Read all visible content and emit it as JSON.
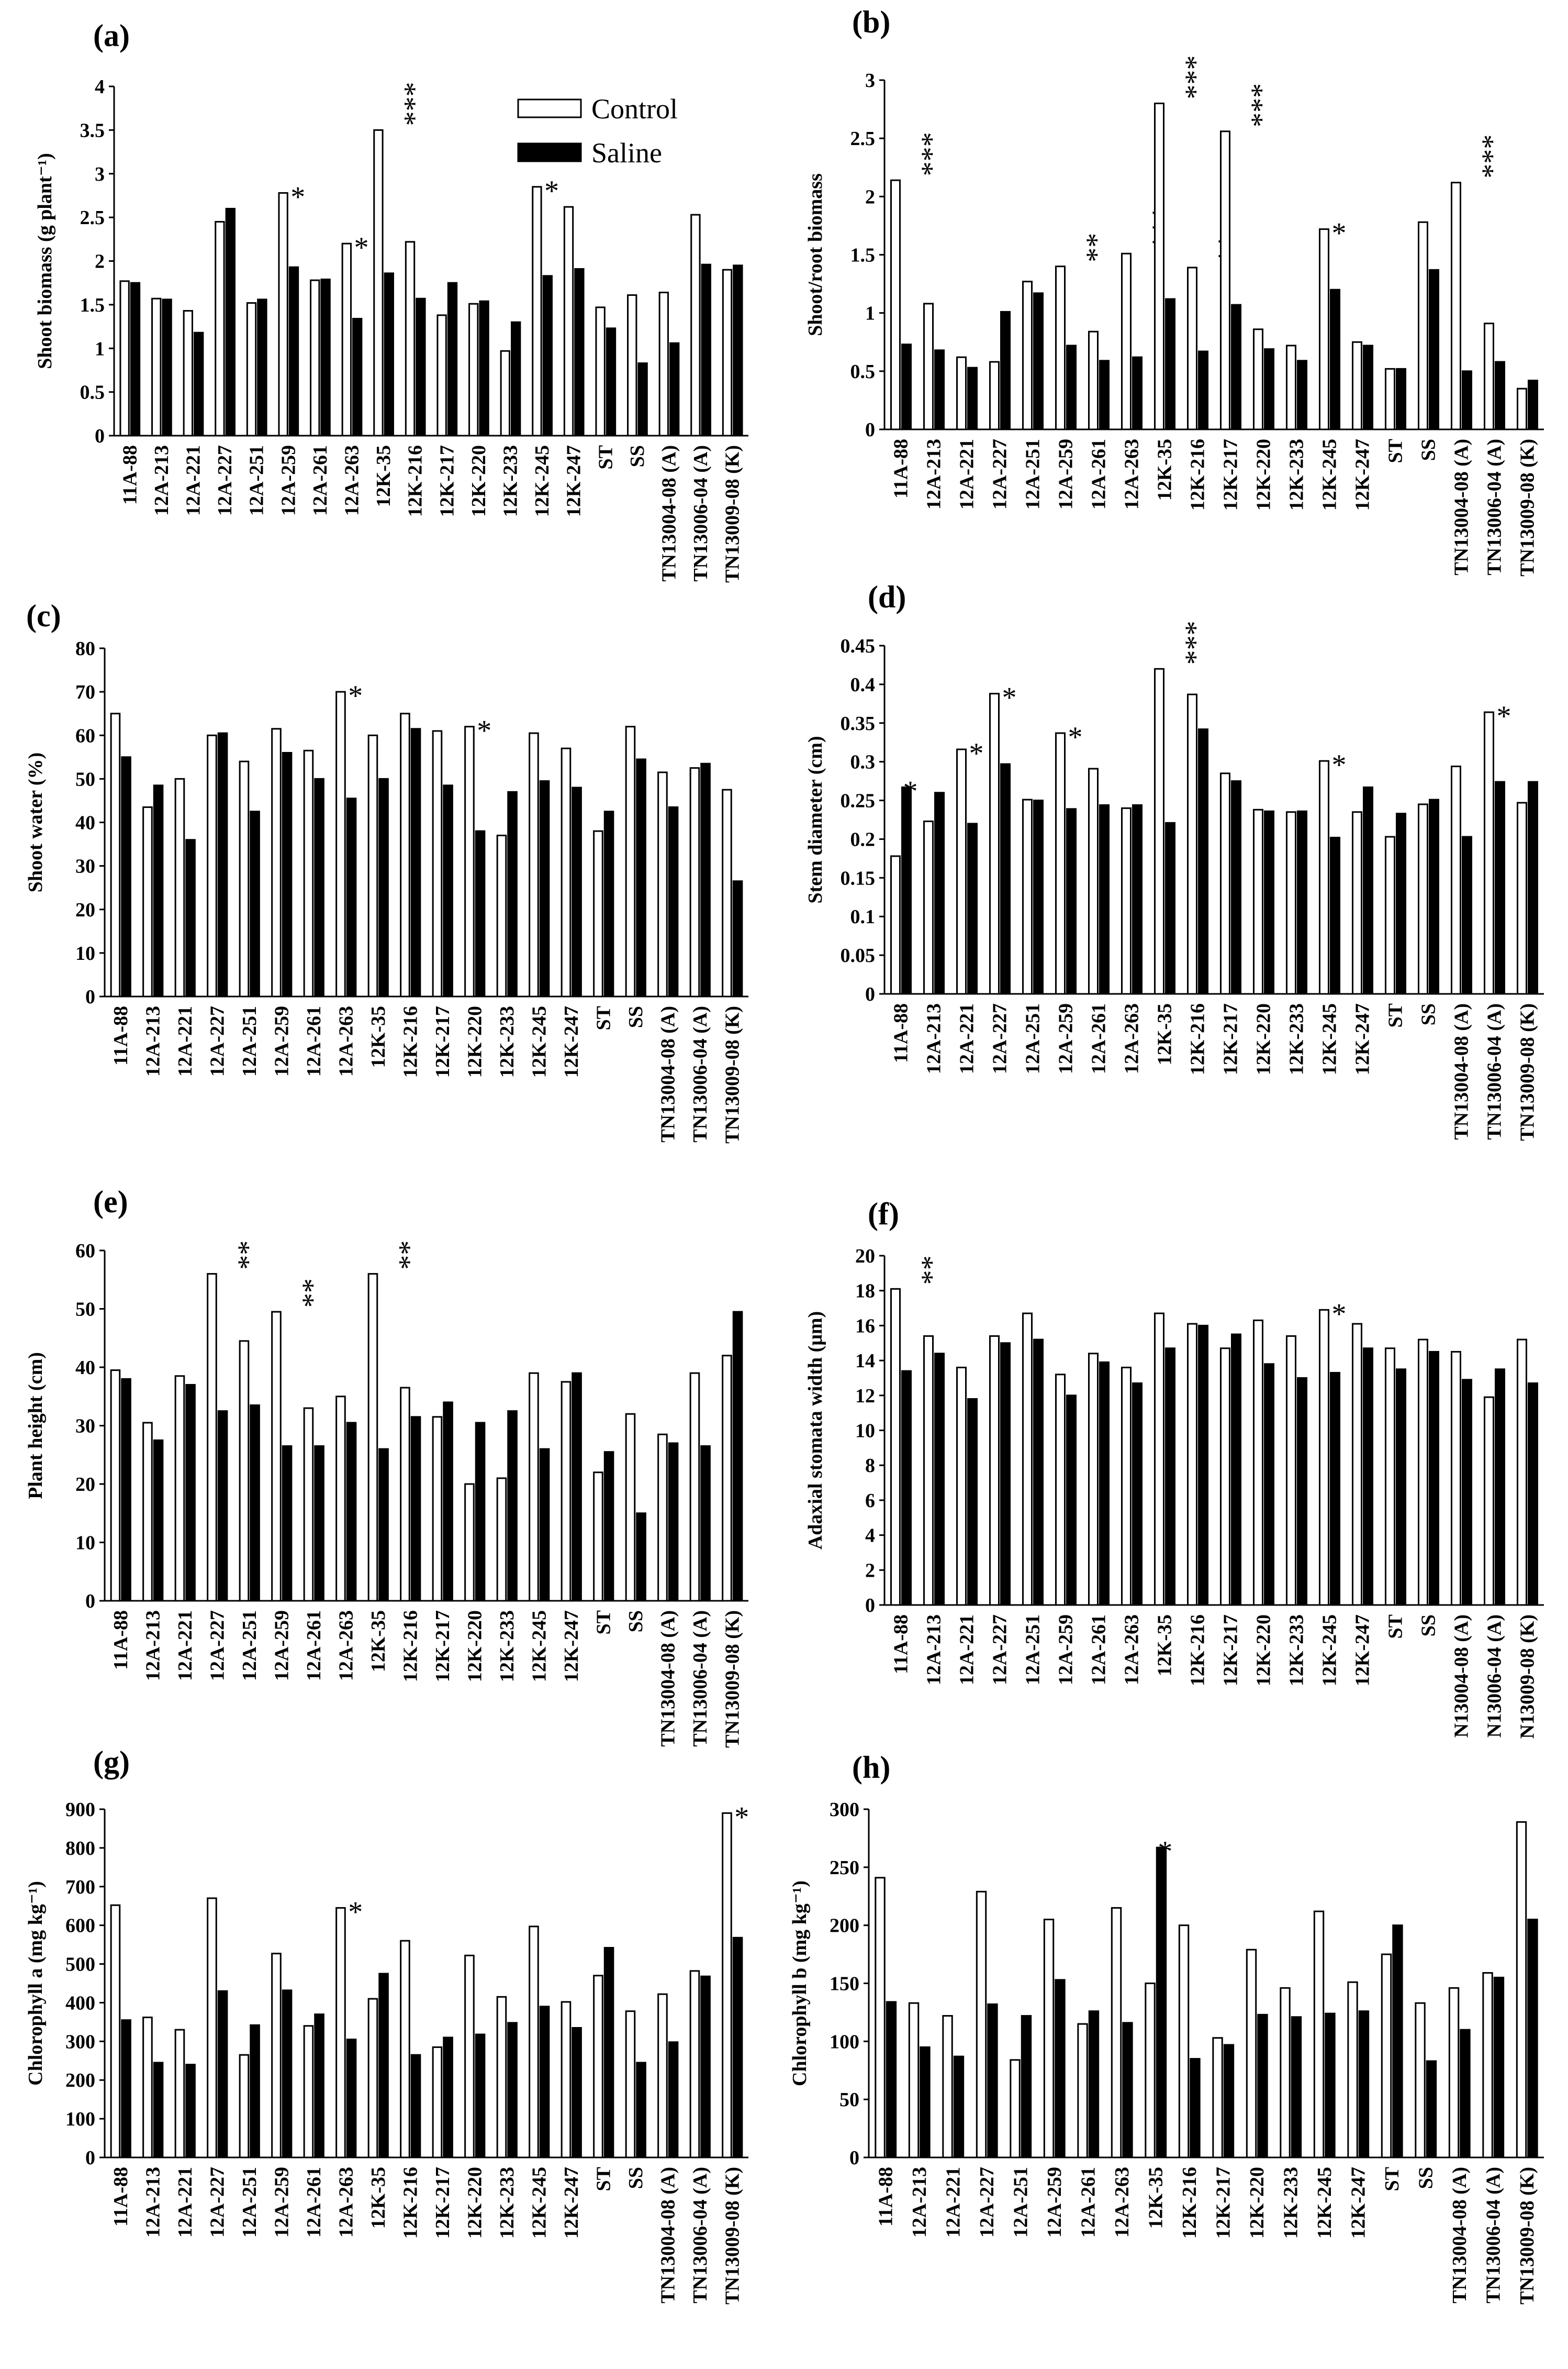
{
  "legend": {
    "control_label": "Control",
    "saline_label": "Saline"
  },
  "chart_data": [
    {
      "type": "bar",
      "panel": "(a)",
      "ylabel": "Shoot biomass (g plant⁻¹)",
      "ylim": [
        0,
        4
      ],
      "ystep": 0.5,
      "yticks": [
        "0",
        "0.5",
        "1",
        "1.5",
        "2",
        "2.5",
        "3",
        "3.5",
        "4"
      ],
      "categories": [
        "11A-88",
        "12A-213",
        "12A-221",
        "12A-227",
        "12A-251",
        "12A-259",
        "12A-261",
        "12A-263",
        "12K-35",
        "12K-216",
        "12K-217",
        "12K-220",
        "12K-233",
        "12K-245",
        "12K-247",
        "ST",
        "SS",
        "TN13004-08 (A)",
        "TN13006-04 (A)",
        "TN13009-08 (K)"
      ],
      "series": [
        {
          "name": "Control",
          "values": [
            1.77,
            1.57,
            1.43,
            2.45,
            1.52,
            2.78,
            1.78,
            2.2,
            3.5,
            2.22,
            1.38,
            1.51,
            0.97,
            2.85,
            2.62,
            1.47,
            1.61,
            1.64,
            2.53,
            1.9
          ]
        },
        {
          "name": "Saline",
          "values": [
            1.75,
            1.56,
            1.18,
            2.6,
            1.56,
            1.93,
            1.79,
            1.34,
            1.86,
            1.57,
            1.75,
            1.54,
            1.3,
            1.83,
            1.91,
            1.23,
            0.83,
            1.06,
            1.96,
            1.95
          ]
        }
      ],
      "significance": [
        "",
        "",
        "",
        "",
        "",
        "*",
        "",
        "*",
        "***",
        "",
        "",
        "",
        "",
        "*",
        "",
        "",
        "",
        "",
        "",
        ""
      ]
    },
    {
      "type": "bar",
      "panel": "(b)",
      "ylabel": "Shoot/root biomass",
      "ylim": [
        0,
        3
      ],
      "ystep": 0.5,
      "yticks": [
        "0",
        "0.5",
        "1",
        "1.5",
        "2",
        "2.5",
        "3"
      ],
      "categories": [
        "11A-88",
        "12A-213",
        "12A-221",
        "12A-227",
        "12A-251",
        "12A-259",
        "12A-261",
        "12A-263",
        "12K-35",
        "12K-216",
        "12K-217",
        "12K-220",
        "12K-233",
        "12K-245",
        "12K-247",
        "ST",
        "SS",
        "TN13004-08 (A)",
        "TN13006-04 (A)",
        "TN13009-08 (K)"
      ],
      "series": [
        {
          "name": "Control",
          "values": [
            2.14,
            1.08,
            0.62,
            0.58,
            1.27,
            1.4,
            0.84,
            1.51,
            2.8,
            1.39,
            2.56,
            0.86,
            0.72,
            1.72,
            0.75,
            0.52,
            1.78,
            2.12,
            0.91,
            0.35
          ]
        },
        {
          "name": "Saline",
          "values": [
            0.73,
            0.68,
            0.53,
            1.01,
            1.17,
            0.72,
            0.59,
            0.62,
            1.12,
            0.67,
            1.07,
            0.69,
            0.59,
            1.2,
            0.72,
            0.52,
            1.37,
            0.5,
            0.58,
            0.42
          ]
        }
      ],
      "significance": [
        "***",
        "",
        "",
        "",
        "",
        "**",
        "",
        "***",
        "***",
        "**",
        "***",
        "",
        "",
        "*",
        "",
        "",
        "",
        "***",
        "",
        ""
      ]
    },
    {
      "type": "bar",
      "panel": "(c)",
      "ylabel": "Shoot water (%)",
      "ylim": [
        0,
        80
      ],
      "ystep": 10,
      "yticks": [
        "0",
        "10",
        "20",
        "30",
        "40",
        "50",
        "60",
        "70",
        "80"
      ],
      "categories": [
        "11A-88",
        "12A-213",
        "12A-221",
        "12A-227",
        "12A-251",
        "12A-259",
        "12A-261",
        "12A-263",
        "12K-35",
        "12K-216",
        "12K-217",
        "12K-220",
        "12K-233",
        "12K-245",
        "12K-247",
        "ST",
        "SS",
        "TN13004-08 (A)",
        "TN13006-04 (A)",
        "TN13009-08 (K)"
      ],
      "series": [
        {
          "name": "Control",
          "values": [
            65,
            43.5,
            50,
            60,
            54,
            61.5,
            56.5,
            70,
            60,
            65,
            61,
            62,
            37,
            60.5,
            57,
            38,
            62,
            51.5,
            52.5,
            47.5
          ]
        },
        {
          "name": "Saline",
          "values": [
            55,
            48.5,
            36,
            60.5,
            42.5,
            56,
            50,
            45.5,
            50,
            61.5,
            48.5,
            38,
            47,
            49.5,
            48,
            42.5,
            54.5,
            43.5,
            53.5,
            26.5
          ]
        }
      ],
      "significance": [
        "",
        "",
        "",
        "",
        "",
        "",
        "",
        "*",
        "",
        "",
        "",
        "*",
        "",
        "",
        "",
        "",
        "",
        "",
        "",
        ""
      ]
    },
    {
      "type": "bar",
      "panel": "(d)",
      "ylabel": "Stem diameter (cm)",
      "ylim": [
        0,
        0.45
      ],
      "ystep": 0.05,
      "yticks": [
        "0",
        "0.05",
        "0.1",
        "0.15",
        "0.2",
        "0.25",
        "0.3",
        "0.35",
        "0.4",
        "0.45"
      ],
      "categories": [
        "11A-88",
        "12A-213",
        "12A-221",
        "12A-227",
        "12A-251",
        "12A-259",
        "12A-261",
        "12A-263",
        "12K-35",
        "12K-216",
        "12K-217",
        "12K-220",
        "12K-233",
        "12K-245",
        "12K-247",
        "ST",
        "SS",
        "TN13004-08 (A)",
        "TN13006-04 (A)",
        "TN13009-08 (K)"
      ],
      "series": [
        {
          "name": "Control",
          "values": [
            0.178,
            0.223,
            0.316,
            0.388,
            0.251,
            0.337,
            0.291,
            0.24,
            0.42,
            0.387,
            0.285,
            0.238,
            0.235,
            0.301,
            0.235,
            0.203,
            0.245,
            0.294,
            0.364,
            0.247
          ]
        },
        {
          "name": "Saline",
          "values": [
            0.267,
            0.26,
            0.22,
            0.297,
            0.25,
            0.239,
            0.244,
            0.244,
            0.221,
            0.342,
            0.275,
            0.236,
            0.236,
            0.202,
            0.267,
            0.233,
            0.251,
            0.203,
            0.274,
            0.274
          ]
        }
      ],
      "significance": [
        "*",
        "",
        "*",
        "*",
        "",
        "*",
        "",
        "",
        "***",
        "",
        "",
        "",
        "",
        "*",
        "",
        "",
        "",
        "",
        "*",
        ""
      ]
    },
    {
      "type": "bar",
      "panel": "(e)",
      "ylabel": "Plant height (cm)",
      "ylim": [
        0,
        60
      ],
      "ystep": 10,
      "yticks": [
        "0",
        "10",
        "20",
        "30",
        "40",
        "50",
        "60"
      ],
      "categories": [
        "11A-88",
        "12A-213",
        "12A-221",
        "12A-227",
        "12A-251",
        "12A-259",
        "12A-261",
        "12A-263",
        "12K-35",
        "12K-216",
        "12K-217",
        "12K-220",
        "12K-233",
        "12K-245",
        "12K-247",
        "ST",
        "SS",
        "TN13004-08 (A)",
        "TN13006-04 (A)",
        "TN13009-08 (K)"
      ],
      "series": [
        {
          "name": "Control",
          "values": [
            39.5,
            30.5,
            38.5,
            56,
            44.5,
            49.5,
            33,
            35,
            56,
            36.5,
            31.5,
            20,
            21,
            39,
            37.5,
            22,
            32,
            28.5,
            39,
            42
          ]
        },
        {
          "name": "Saline",
          "values": [
            38,
            27.5,
            37,
            32.5,
            33.5,
            26.5,
            26.5,
            30.5,
            26,
            31.5,
            34,
            30.5,
            32.5,
            26,
            39,
            25.5,
            15,
            27,
            26.5,
            49.5
          ]
        }
      ],
      "significance": [
        "",
        "",
        "",
        "**",
        "",
        "**",
        "",
        "",
        "**",
        "",
        "",
        "",
        "",
        "",
        "",
        "",
        "",
        "",
        "",
        ""
      ]
    },
    {
      "type": "bar",
      "panel": "(f)",
      "ylabel": "Adaxial stomata width (μm)",
      "ylim": [
        0,
        20
      ],
      "ystep": 2,
      "yticks": [
        "0",
        "2",
        "4",
        "6",
        "8",
        "10",
        "12",
        "14",
        "16",
        "18",
        "20"
      ],
      "categories": [
        "11A-88",
        "12A-213",
        "12A-221",
        "12A-227",
        "12A-251",
        "12A-259",
        "12A-261",
        "12A-263",
        "12K-35",
        "12K-216",
        "12K-217",
        "12K-220",
        "12K-233",
        "12K-245",
        "12K-247",
        "ST",
        "SS",
        "N13004-08 (A)",
        "N13006-04 (A)",
        "N13009-08 (K)"
      ],
      "series": [
        {
          "name": "Control",
          "values": [
            18.1,
            15.4,
            13.6,
            15.4,
            16.7,
            13.2,
            14.4,
            13.6,
            16.7,
            16.1,
            14.7,
            16.3,
            15.4,
            16.9,
            16.1,
            14.7,
            15.2,
            14.5,
            11.9,
            15.2
          ]
        },
        {
          "name": "Saline",
          "values": [
            13.4,
            14.4,
            11.8,
            15,
            15.2,
            12,
            13.9,
            12.7,
            14.7,
            16,
            15.5,
            13.8,
            13,
            13.3,
            14.7,
            13.5,
            14.5,
            12.9,
            13.5,
            12.7
          ]
        }
      ],
      "significance": [
        "**",
        "",
        "",
        "",
        "",
        "",
        "",
        "",
        "",
        "",
        "",
        "",
        "",
        "*",
        "",
        "",
        "",
        "",
        "",
        ""
      ]
    },
    {
      "type": "bar",
      "panel": "(g)",
      "ylabel": "Chlorophyll a (mg kg⁻¹)",
      "ylim": [
        0,
        900
      ],
      "ystep": 100,
      "yticks": [
        "0",
        "100",
        "200",
        "300",
        "400",
        "500",
        "600",
        "700",
        "800",
        "900"
      ],
      "categories": [
        "11A-88",
        "12A-213",
        "12A-221",
        "12A-227",
        "12A-251",
        "12A-259",
        "12A-261",
        "12A-263",
        "12K-35",
        "12K-216",
        "12K-217",
        "12K-220",
        "12K-233",
        "12K-245",
        "12K-247",
        "ST",
        "SS",
        "TN13004-08 (A)",
        "TN13006-04 (A)",
        "TN13009-08 (K)"
      ],
      "series": [
        {
          "name": "Control",
          "values": [
            652,
            362,
            330,
            670,
            265,
            527,
            340,
            645,
            410,
            560,
            285,
            522,
            415,
            597,
            402,
            470,
            378,
            422,
            482,
            890
          ]
        },
        {
          "name": "Saline",
          "values": [
            355,
            245,
            240,
            430,
            342,
            432,
            370,
            305,
            475,
            265,
            310,
            318,
            348,
            390,
            335,
            542,
            245,
            298,
            468,
            568
          ]
        }
      ],
      "significance": [
        "",
        "",
        "",
        "",
        "",
        "",
        "",
        "*",
        "",
        "",
        "",
        "",
        "",
        "",
        "",
        "",
        "",
        "",
        "",
        "*"
      ]
    },
    {
      "type": "bar",
      "panel": "(h)",
      "ylabel": "Chlorophyll b (mg kg⁻¹)",
      "ylim": [
        0,
        300
      ],
      "ystep": 50,
      "yticks": [
        "0",
        "50",
        "100",
        "150",
        "200",
        "250",
        "300"
      ],
      "categories": [
        "11A-88",
        "12A-213",
        "12A-221",
        "12A-227",
        "12A-251",
        "12A-259",
        "12A-261",
        "12A-263",
        "12K-35",
        "12K-216",
        "12K-217",
        "12K-220",
        "12K-233",
        "12K-245",
        "12K-247",
        "ST",
        "SS",
        "TN13004-08 (A)",
        "TN13006-04 (A)",
        "TN13009-08 (K)"
      ],
      "series": [
        {
          "name": "Control",
          "values": [
            241,
            133,
            122,
            229,
            84,
            205,
            115,
            215,
            150,
            200,
            103,
            179,
            146,
            212,
            151,
            175,
            133,
            146,
            159,
            289
          ]
        },
        {
          "name": "Saline",
          "values": [
            134,
            95,
            87,
            132,
            122,
            153,
            126,
            116,
            267,
            85,
            97,
            123,
            121,
            124,
            126,
            200,
            83,
            110,
            155,
            205
          ]
        }
      ],
      "significance": [
        "",
        "",
        "",
        "",
        "",
        "",
        "",
        "",
        "*",
        "",
        "",
        "",
        "",
        "",
        "",
        "",
        "",
        "",
        "",
        ""
      ]
    }
  ]
}
